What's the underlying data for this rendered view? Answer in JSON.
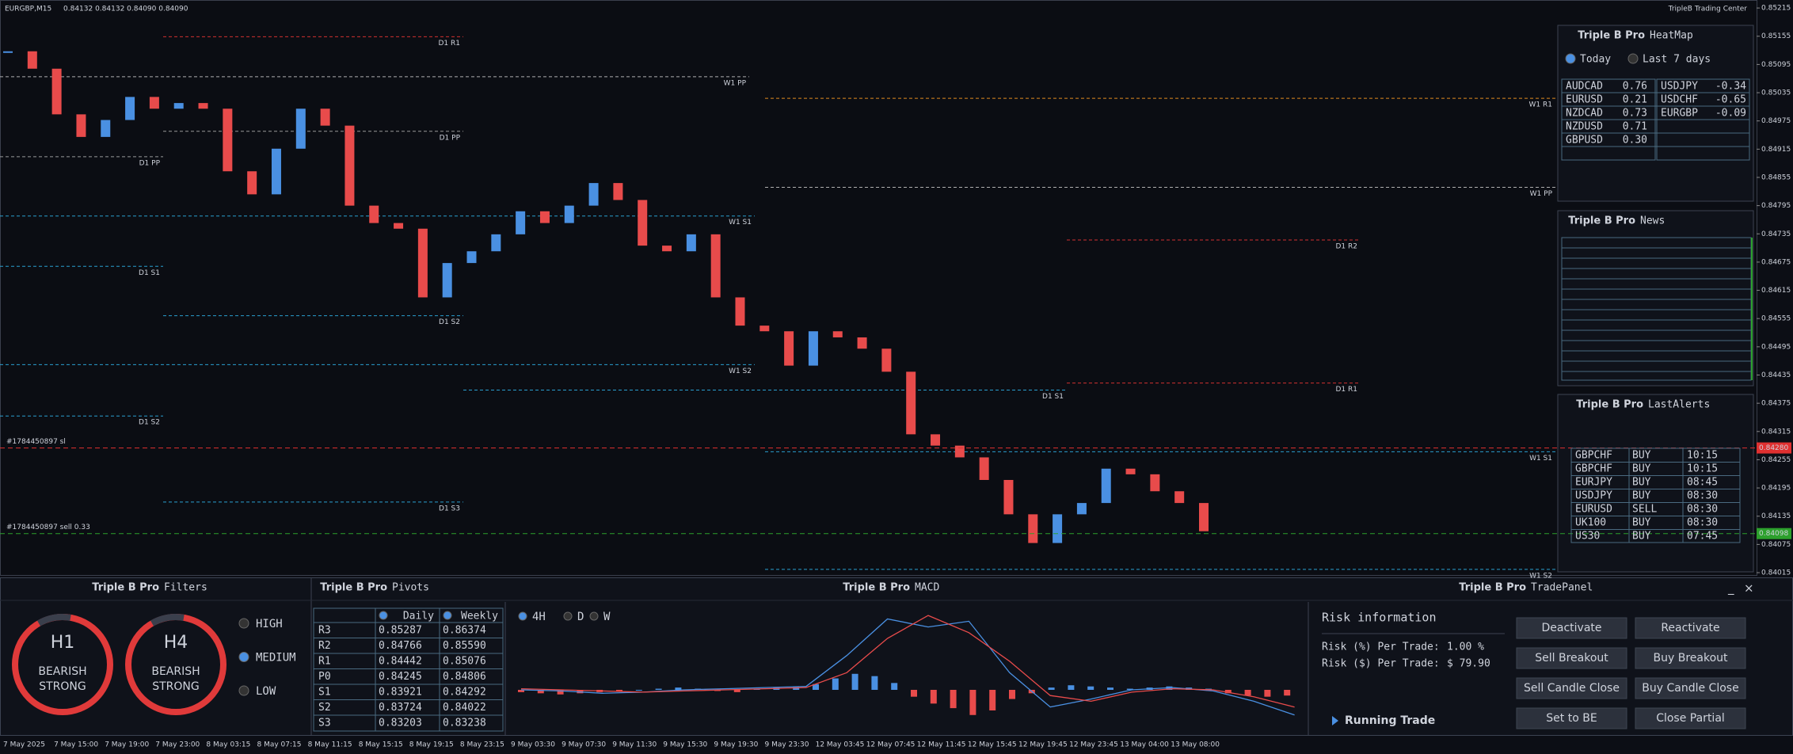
{
  "header": {
    "symbol": "EURGBP,M15",
    "quote": "0.84132 0.84132 0.84090 0.84090",
    "brand": "TripleB Trading Center"
  },
  "chart_data": {
    "type": "candlestick",
    "values": [
      0.85123,
      0.85086,
      0.84989,
      0.84941,
      0.84977,
      0.85026,
      0.85001,
      0.85013,
      0.85001,
      0.84868,
      0.84819,
      0.84916,
      0.85001,
      0.84965,
      0.84795,
      0.84758,
      0.84746,
      0.846,
      0.84673,
      0.84698,
      0.84734,
      0.84783,
      0.84758,
      0.84795,
      0.84843,
      0.84807,
      0.8471,
      0.84698,
      0.84734,
      0.846,
      0.8454,
      0.84528,
      0.84455,
      0.84528,
      0.84515,
      0.84491,
      0.84442,
      0.84309,
      0.84285,
      0.8426,
      0.84212,
      0.84139,
      0.84078,
      0.84139,
      0.84163,
      0.84236,
      0.84224,
      0.84188,
      0.84163,
      0.84103
    ],
    "up_color": "#4a90e2",
    "down_color": "#e84b4b",
    "ylim": [
      0.8401,
      0.85232
    ],
    "yticks": [
      0.85215,
      0.85155,
      0.85095,
      0.85035,
      0.84975,
      0.84915,
      0.84855,
      0.84795,
      0.84735,
      0.84675,
      0.84615,
      0.84555,
      0.84495,
      0.84435,
      0.84375,
      0.84315,
      0.84255,
      0.84195,
      0.84135,
      0.84075,
      0.84015
    ],
    "x_labels": [
      "7 May 2025",
      "7 May 15:00",
      "7 May 19:00",
      "7 May 23:00",
      "8 May 03:15",
      "8 May 07:15",
      "8 May 11:15",
      "8 May 15:15",
      "8 May 19:15",
      "8 May 23:15",
      "9 May 03:30",
      "9 May 07:30",
      "9 May 11:30",
      "9 May 15:30",
      "9 May 19:30",
      "9 May 23:30",
      "12 May 03:45",
      "12 May 07:45",
      "12 May 11:45",
      "12 May 15:45",
      "12 May 19:45",
      "12 May 23:45",
      "13 May 04:00",
      "13 May 08:00"
    ],
    "levels": [
      {
        "label": "D1 R1",
        "value": 0.85154,
        "color": "#d03030"
      },
      {
        "label": "W1 PP",
        "value": 0.85069,
        "color": "#b0b0b0"
      },
      {
        "label": "D1 PP",
        "value": 0.84953,
        "color": "#9a9a9a"
      },
      {
        "label": "D1 PP",
        "value": 0.84899,
        "color": "#9a9a9a"
      },
      {
        "label": "W1 S1",
        "value": 0.84773,
        "color": "#2a9fd0"
      },
      {
        "label": "D1 S1",
        "value": 0.84666,
        "color": "#2a9fd0"
      },
      {
        "label": "D1 S2",
        "value": 0.84561,
        "color": "#2a9fd0"
      },
      {
        "label": "W1 S2",
        "value": 0.84457,
        "color": "#2a9fd0"
      },
      {
        "label": "D1 S2",
        "value": 0.84348,
        "color": "#2a9fd0"
      },
      {
        "label": "W1 R1",
        "value": 0.85023,
        "color": "#e08a20"
      },
      {
        "label": "W1 PP",
        "value": 0.84834,
        "color": "#b0b0b0"
      },
      {
        "label": "W1 S1",
        "value": 0.84272,
        "color": "#2a9fd0"
      },
      {
        "label": "D1 R1",
        "value": 0.84418,
        "color": "#d03030"
      },
      {
        "label": "D1 S3",
        "value": 0.84165,
        "color": "#2a9fd0"
      },
      {
        "label": "D1 S1",
        "value": 0.84403,
        "color": "#2a9fd0"
      },
      {
        "label": "D1 R2",
        "value": 0.84722,
        "color": "#d03030"
      },
      {
        "label": "W1 S2",
        "value": 0.84022,
        "color": "#2a9fd0"
      }
    ],
    "orders": [
      {
        "label": "#1784450897 sl",
        "value": 0.8428,
        "tag": "0.84280",
        "color": "#e03030"
      },
      {
        "label": "#1784450897 sell 0.33",
        "value": 0.84098,
        "tag": "0.84098",
        "color": "#2ca02c"
      }
    ]
  },
  "heatmap": {
    "brand": "Triple B Pro",
    "title": "HeatMap",
    "options": [
      "Today",
      "Last 7 days"
    ],
    "positive": [
      [
        "AUDCAD",
        "0.76"
      ],
      [
        "EURUSD",
        "0.21"
      ],
      [
        "NZDCAD",
        "0.73"
      ],
      [
        "NZDUSD",
        "0.71"
      ],
      [
        "GBPUSD",
        "0.30"
      ]
    ],
    "negative": [
      [
        "USDJPY",
        "-0.34"
      ],
      [
        "USDCHF",
        "-0.65"
      ],
      [
        "EURGBP",
        "-0.09"
      ]
    ]
  },
  "news": {
    "brand": "Triple B Pro",
    "title": "News"
  },
  "alerts": {
    "brand": "Triple B Pro",
    "title": "LastAlerts",
    "rows": [
      [
        "GBPCHF",
        "BUY",
        "10:15"
      ],
      [
        "GBPCHF",
        "BUY",
        "10:15"
      ],
      [
        "EURJPY",
        "BUY",
        "08:45"
      ],
      [
        "USDJPY",
        "BUY",
        "08:30"
      ],
      [
        "EURUSD",
        "SELL",
        "08:30"
      ],
      [
        "UK100",
        "BUY",
        "08:30"
      ],
      [
        "US30",
        "BUY",
        "07:45"
      ]
    ]
  },
  "filters": {
    "brand": "Triple B Pro",
    "title": "Filters",
    "gauges": [
      {
        "tf": "H1",
        "state": "BEARISH",
        "strength": "STRONG"
      },
      {
        "tf": "H4",
        "state": "BEARISH",
        "strength": "STRONG"
      }
    ],
    "levels": [
      "HIGH",
      "MEDIUM",
      "LOW"
    ]
  },
  "pivots": {
    "brand": "Triple B Pro",
    "title": "Pivots",
    "columns": [
      "Daily",
      "Weekly"
    ],
    "rows": [
      [
        "R3",
        "0.85287",
        "0.86374"
      ],
      [
        "R2",
        "0.84766",
        "0.85590"
      ],
      [
        "R1",
        "0.84442",
        "0.85076"
      ],
      [
        "P0",
        "0.84245",
        "0.84806"
      ],
      [
        "S1",
        "0.83921",
        "0.84292"
      ],
      [
        "S2",
        "0.83724",
        "0.84022"
      ],
      [
        "S3",
        "0.83203",
        "0.83238"
      ]
    ]
  },
  "macd": {
    "brand": "Triple B Pro",
    "title": "MACD",
    "timeframes": [
      "4H",
      "D",
      "W"
    ],
    "histogram": [
      -2,
      -3,
      -4,
      -3,
      -2,
      -1,
      0,
      1,
      2,
      1,
      -1,
      -2,
      1,
      2,
      3,
      5,
      10,
      14,
      12,
      6,
      -6,
      -12,
      -16,
      -22,
      -18,
      -8,
      -3,
      2,
      4,
      3,
      2,
      1,
      2,
      3,
      2,
      1,
      -3,
      -5,
      -6,
      -5
    ],
    "macd_line": [
      0,
      -1,
      -3,
      -2,
      0,
      1,
      2,
      3,
      30,
      62,
      55,
      60,
      15,
      -15,
      -8,
      0,
      2,
      -1,
      -10,
      -22
    ],
    "signal_line": [
      1,
      0,
      -1,
      -2,
      -1,
      0,
      1,
      2,
      15,
      45,
      65,
      50,
      25,
      -5,
      -10,
      -2,
      1,
      0,
      -6,
      -15
    ]
  },
  "trade_panel": {
    "brand": "Triple B Pro",
    "title": "TradePanel",
    "controls": [
      "_",
      "×"
    ],
    "section": "Risk information",
    "risk_pct_label": "Risk (%) Per Trade:",
    "risk_pct": "1.00 %",
    "risk_usd_label": "Risk ($) Per Trade:",
    "risk_usd": "$ 79.90",
    "running": "Running Trade",
    "buttons": [
      [
        "Deactivate",
        "Reactivate"
      ],
      [
        "Sell Breakout",
        "Buy Breakout"
      ],
      [
        "Sell Candle Close",
        "Buy Candle Close"
      ],
      [
        "Set to BE",
        "Close Partial"
      ]
    ]
  }
}
